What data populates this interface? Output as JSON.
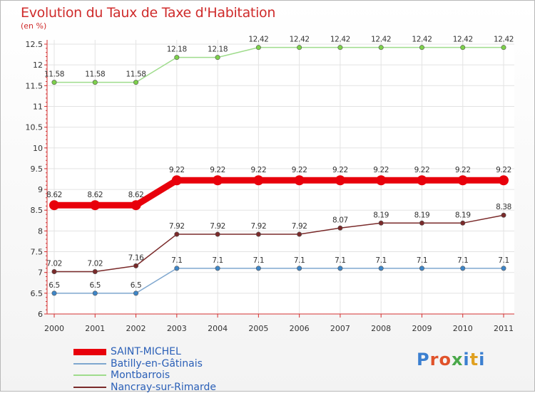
{
  "header": {
    "title": "Evolution du Taux de Taxe d'Habitation",
    "subtitle": "(en %)"
  },
  "logo": {
    "text": "Proxiti",
    "colors": [
      "#3b7fd0",
      "#e0522a",
      "#e0522a",
      "#4aa84a",
      "#3b7fd0",
      "#e0a020",
      "#3b7fd0"
    ]
  },
  "chart_data": {
    "type": "line",
    "title": "Evolution du Taux de Taxe d'Habitation",
    "ylabel": "(en %)",
    "x": [
      "2000",
      "2001",
      "2002",
      "2003",
      "2004",
      "2005",
      "2006",
      "2007",
      "2008",
      "2009",
      "2010",
      "2011"
    ],
    "ylim": [
      6,
      12.5
    ],
    "yticks": [
      6,
      6.5,
      7,
      7.5,
      8,
      8.5,
      9,
      9.5,
      10,
      10.5,
      11,
      11.5,
      12,
      12.5
    ],
    "ytick_labels": [
      "6",
      "6.5",
      "7",
      "7.5",
      "8",
      "8.5",
      "9",
      "9.5",
      "10",
      "10.5",
      "11",
      "11.5",
      "12",
      "12.5"
    ],
    "grid": true,
    "legend_position": "bottom-left",
    "series": [
      {
        "name": "SAINT-MICHEL",
        "color": "#e8000b",
        "dot_color": "#e8000b",
        "thick": true,
        "values": [
          8.62,
          8.62,
          8.62,
          9.22,
          9.22,
          9.22,
          9.22,
          9.22,
          9.22,
          9.22,
          9.22,
          9.22
        ],
        "labels": [
          "8.62",
          "8.62",
          "8.62",
          "9.22",
          "9.22",
          "9.22",
          "9.22",
          "9.22",
          "9.22",
          "9.22",
          "9.22",
          "9.22"
        ]
      },
      {
        "name": "Batilly-en-Gâtinais",
        "color": "#7fa7cf",
        "dot_color": "#3e86c8",
        "thick": false,
        "values": [
          6.5,
          6.5,
          6.5,
          7.1,
          7.1,
          7.1,
          7.1,
          7.1,
          7.1,
          7.1,
          7.1,
          7.1
        ],
        "labels": [
          "6.5",
          "6.5",
          "6.5",
          "7.1",
          "7.1",
          "7.1",
          "7.1",
          "7.1",
          "7.1",
          "7.1",
          "7.1",
          "7.1"
        ]
      },
      {
        "name": "Montbarrois",
        "color": "#9fdc8c",
        "dot_color": "#7cd04a",
        "thick": false,
        "values": [
          11.58,
          11.58,
          11.58,
          12.18,
          12.18,
          12.42,
          12.42,
          12.42,
          12.42,
          12.42,
          12.42,
          12.42
        ],
        "labels": [
          "11.58",
          "11.58",
          "11.58",
          "12.18",
          "12.18",
          "12.42",
          "12.42",
          "12.42",
          "12.42",
          "12.42",
          "12.42",
          "12.42"
        ]
      },
      {
        "name": "Nancray-sur-Rimarde",
        "color": "#7a2a2a",
        "dot_color": "#7a2a2a",
        "thick": false,
        "values": [
          7.02,
          7.02,
          7.16,
          7.92,
          7.92,
          7.92,
          7.92,
          8.07,
          8.19,
          8.19,
          8.19,
          8.38
        ],
        "labels": [
          "7.02",
          "7.02",
          "7.16",
          "7.92",
          "7.92",
          "7.92",
          "7.92",
          "8.07",
          "8.19",
          "8.19",
          "8.19",
          "8.38"
        ]
      }
    ]
  }
}
